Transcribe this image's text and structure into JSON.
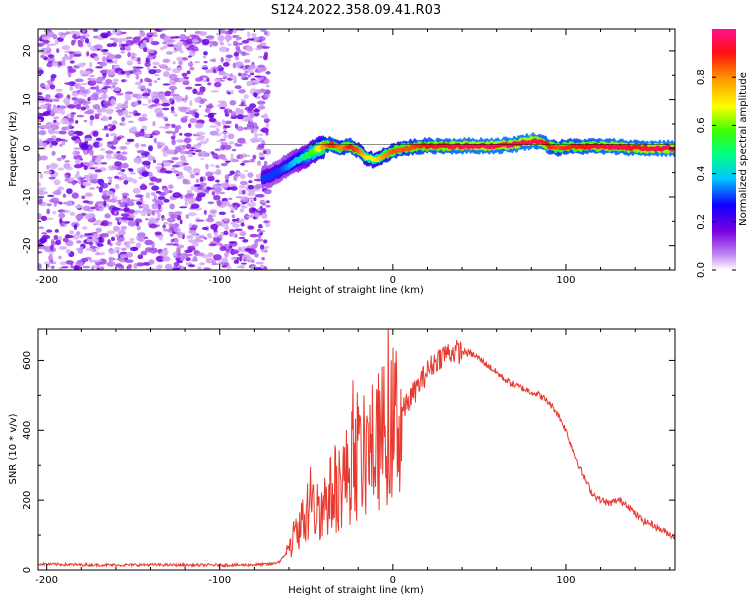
{
  "title": "S124.2022.358.09.41.R03",
  "chart_data": [
    {
      "type": "heatmap",
      "title": "S124.2022.358.09.41.R03",
      "xlabel": "Height of straight line (km)",
      "ylabel": "Frequency (Hz)",
      "xlim": [
        -205,
        163
      ],
      "ylim": [
        -25,
        24.5
      ],
      "xticks": [
        -200,
        -100,
        0,
        100
      ],
      "yticks": [
        -20,
        -10,
        0,
        10,
        20
      ],
      "colorbar": {
        "label": "Normalized spectral amplitude",
        "range": [
          0,
          1
        ],
        "ticks": [
          "0.0",
          "0.2",
          "0.4",
          "0.6",
          "0.8"
        ],
        "colors": [
          "#ffffff",
          "#7a00e0",
          "#0000ff",
          "#00ffff",
          "#00ff00",
          "#ffff00",
          "#ff0000",
          "#ff1090"
        ]
      },
      "noise_region_x": [
        -205,
        -72
      ],
      "signal_trace": {
        "x": [
          -75,
          -70,
          -65,
          -60,
          -55,
          -50,
          -45,
          -40,
          -35,
          -30,
          -25,
          -20,
          -15,
          -10,
          -5,
          0,
          10,
          20,
          30,
          40,
          50,
          60,
          70,
          80,
          85,
          90,
          95,
          100,
          110,
          120,
          130,
          140,
          150,
          163
        ],
        "frequency": [
          -6,
          -5.5,
          -4.5,
          -3.5,
          -2.5,
          -1.5,
          -0.5,
          0.5,
          0.8,
          0,
          0.5,
          -0.5,
          -2,
          -2.5,
          -1.5,
          -0.5,
          0.2,
          0.5,
          0.5,
          0.5,
          0.5,
          0.5,
          0.8,
          1.5,
          1.5,
          0.5,
          0,
          0.3,
          0.4,
          0.4,
          0.3,
          0.1,
          0,
          0
        ],
        "amplitude": [
          0.3,
          0.3,
          0.3,
          0.35,
          0.4,
          0.5,
          0.6,
          0.8,
          0.9,
          0.8,
          0.9,
          0.85,
          0.7,
          0.7,
          0.8,
          0.85,
          0.85,
          0.9,
          0.92,
          0.95,
          0.95,
          0.95,
          0.95,
          0.95,
          0.95,
          0.9,
          0.85,
          0.88,
          0.9,
          0.92,
          0.95,
          0.92,
          0.95,
          0.95
        ]
      }
    },
    {
      "type": "line",
      "title": "",
      "xlabel": "Height of straight line (km)",
      "ylabel": "SNR (10 * v/v)",
      "xlim": [
        -205,
        163
      ],
      "ylim": [
        0,
        690
      ],
      "xticks": [
        -200,
        -100,
        0,
        100
      ],
      "yticks": [
        0,
        200,
        400,
        600
      ],
      "series": [
        {
          "color": "#e8392f",
          "x": [
            -205,
            -180,
            -160,
            -140,
            -120,
            -100,
            -90,
            -80,
            -70,
            -65,
            -60,
            -55,
            -50,
            -45,
            -40,
            -35,
            -30,
            -25,
            -20,
            -15,
            -10,
            -5,
            0,
            5,
            10,
            15,
            20,
            25,
            30,
            35,
            40,
            45,
            50,
            55,
            60,
            65,
            70,
            75,
            80,
            85,
            90,
            95,
            100,
            105,
            110,
            115,
            120,
            125,
            130,
            135,
            140,
            145,
            150,
            155,
            163
          ],
          "values": [
            17,
            15,
            14,
            15,
            14,
            14,
            14,
            15,
            17,
            25,
            60,
            120,
            150,
            170,
            190,
            220,
            250,
            280,
            310,
            330,
            360,
            390,
            420,
            450,
            490,
            530,
            570,
            600,
            620,
            625,
            625,
            620,
            605,
            585,
            565,
            545,
            530,
            520,
            510,
            500,
            480,
            450,
            400,
            330,
            270,
            220,
            200,
            190,
            200,
            190,
            160,
            140,
            130,
            115,
            95
          ]
        }
      ]
    }
  ]
}
